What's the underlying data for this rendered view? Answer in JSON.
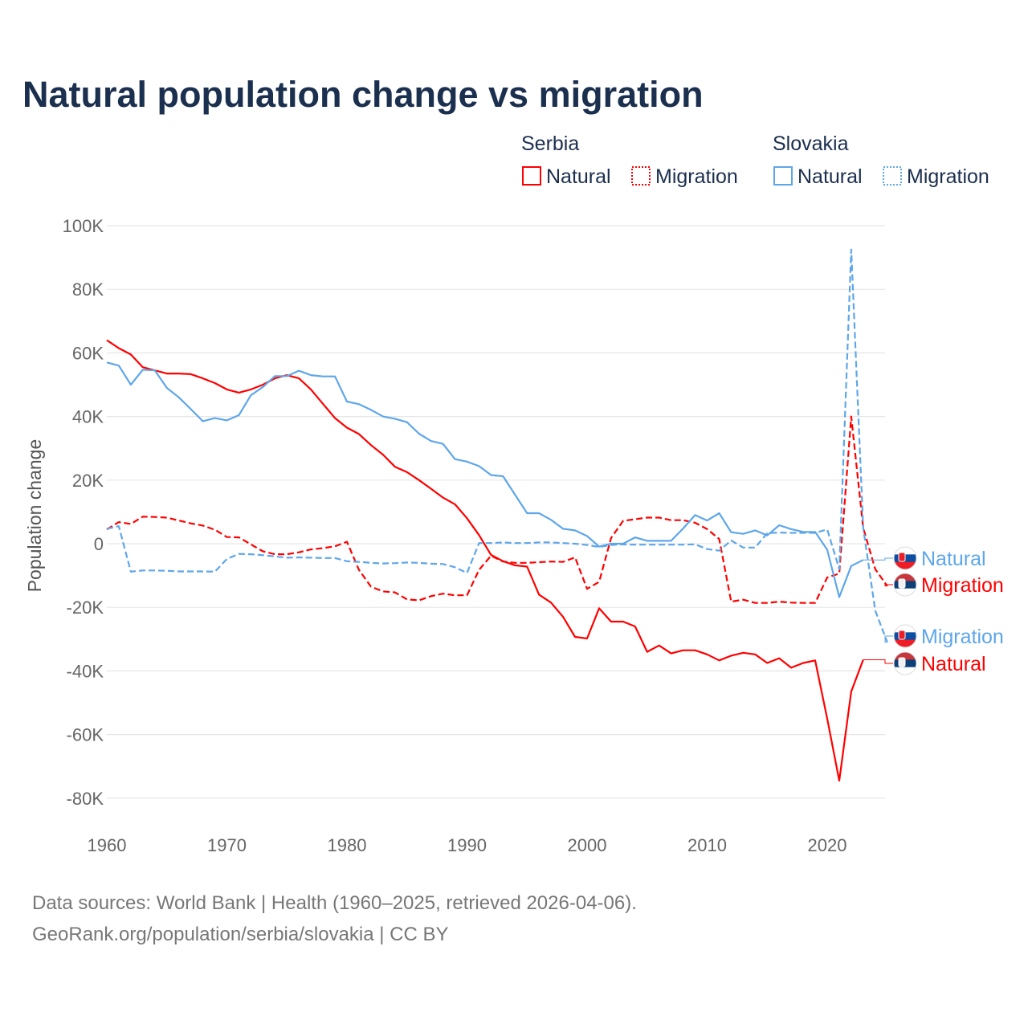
{
  "chart_data": {
    "type": "line",
    "title": "Natural population change vs migration",
    "xlabel": "",
    "ylabel": "Population change",
    "xlim": [
      1960,
      2025
    ],
    "ylim": [
      -80,
      100
    ],
    "y_unit": "thousands",
    "grid": true,
    "x_ticks": [
      1960,
      1970,
      1980,
      1990,
      2000,
      2010,
      2020
    ],
    "x_tick_labels": [
      "1960",
      "1970",
      "1980",
      "1990",
      "2000",
      "2010",
      "2020"
    ],
    "y_ticks": [
      100,
      80,
      60,
      40,
      20,
      0,
      -20,
      -40,
      -60,
      -80
    ],
    "y_tick_labels": [
      "100K",
      "80K",
      "60K",
      "40K",
      "20K",
      "0",
      "-20K",
      "-40K",
      "-60K",
      "-80K"
    ],
    "legend": {
      "placement": "top-right",
      "groups": [
        {
          "country": "Serbia",
          "items": [
            "Natural",
            "Migration"
          ]
        },
        {
          "country": "Slovakia",
          "items": [
            "Natural",
            "Migration"
          ]
        }
      ]
    },
    "series": [
      {
        "name": "Serbia Natural",
        "country": "Serbia",
        "kind": "Natural",
        "color": "#ff0000",
        "dashed": false,
        "end_label": "Natural",
        "start_year": 1960,
        "values": [
          64,
          61.5,
          59.5,
          55.5,
          54.5,
          53.5,
          53.5,
          53.3,
          52,
          50.5,
          48.5,
          47.5,
          48.5,
          50,
          52,
          53,
          52,
          48.5,
          44,
          39.5,
          36.5,
          34.5,
          31,
          28,
          24.2,
          22.5,
          20,
          17.3,
          14.5,
          12.4,
          8,
          2.7,
          -3.5,
          -5.5,
          -6.8,
          -7.2,
          -16,
          -18.5,
          -23,
          -29.3,
          -29.8,
          -20.3,
          -24.5,
          -24.5,
          -26,
          -34,
          -32,
          -34.5,
          -33.5,
          -33.5,
          -34.8,
          -36.7,
          -35.2,
          -34.3,
          -34.8,
          -37.5,
          -36,
          -39,
          -37.5,
          -36.7,
          -55,
          -74.5,
          -46.5,
          -36.5
        ]
      },
      {
        "name": "Serbia Migration",
        "country": "Serbia",
        "kind": "Migration",
        "color": "#ff0000",
        "dashed": true,
        "end_label": "Migration",
        "start_year": 1960,
        "values": [
          4.5,
          6.8,
          6.2,
          8.5,
          8.4,
          8.2,
          7.3,
          6.4,
          5.7,
          4.4,
          2.1,
          2,
          -0.2,
          -2.4,
          -3.3,
          -3.3,
          -2.7,
          -1.8,
          -1.4,
          -0.8,
          0.6,
          -8.2,
          -13.5,
          -15,
          -15.3,
          -17.5,
          -17.8,
          -16.5,
          -15.7,
          -16.2,
          -16.2,
          -8.2,
          -3.8,
          -5.6,
          -6,
          -6,
          -5.8,
          -5.6,
          -5.7,
          -4.3,
          -14.2,
          -12,
          1.8,
          7.2,
          7.7,
          8.2,
          8.2,
          7.4,
          7.4,
          6.6,
          4.6,
          1.5,
          -18.2,
          -17.6,
          -18.6,
          -18.6,
          -18.2,
          -18.5,
          -18.6,
          -18.6,
          -10.6,
          -9.4,
          40,
          5,
          -8,
          -13.3
        ]
      },
      {
        "name": "Slovakia Natural",
        "country": "Slovakia",
        "kind": "Natural",
        "color": "#5ea6ea",
        "dashed": false,
        "end_label": "Natural",
        "start_year": 1960,
        "values": [
          57,
          56,
          50,
          54.7,
          54.5,
          49,
          46,
          42.3,
          38.5,
          39.5,
          38.8,
          40.4,
          46.7,
          49.3,
          52.7,
          52.7,
          54.4,
          53,
          52.6,
          52.6,
          44.7,
          43.9,
          42.1,
          40,
          39.3,
          38.2,
          34.6,
          32.3,
          31.4,
          26.6,
          25.8,
          24.4,
          21.6,
          21.2,
          15.4,
          9.6,
          9.6,
          7.5,
          4.7,
          4.2,
          2.4,
          -0.9,
          0,
          0,
          2,
          0.9,
          0.9,
          0.9,
          4.8,
          9,
          7.3,
          9.6,
          3.6,
          3.1,
          4.2,
          2.6,
          5.8,
          4.6,
          3.7,
          3.7,
          -1.9,
          -16.8,
          -7,
          -5.1
        ]
      },
      {
        "name": "Slovakia Migration",
        "country": "Slovakia",
        "kind": "Migration",
        "color": "#5ea6ea",
        "dashed": true,
        "end_label": "Migration",
        "start_year": 1960,
        "values": [
          4.7,
          5.5,
          -8.8,
          -8.4,
          -8.4,
          -8.5,
          -8.7,
          -8.7,
          -8.7,
          -8.8,
          -4.8,
          -3.2,
          -3.3,
          -3.6,
          -4,
          -4.4,
          -4.3,
          -4.4,
          -4.5,
          -4.5,
          -5.5,
          -5.7,
          -6,
          -6.2,
          -6.1,
          -5.9,
          -6,
          -6.3,
          -6.4,
          -7.4,
          -9.2,
          0.2,
          0.2,
          0.4,
          0.2,
          0.2,
          0.4,
          0.4,
          0.2,
          0,
          -0.4,
          -1,
          -0.4,
          -0.2,
          -0.3,
          -0.3,
          -0.3,
          -0.3,
          -0.3,
          -0.2,
          -1.7,
          -2.2,
          1,
          -1.2,
          -1.2,
          3.3,
          3.5,
          3.4,
          3.4,
          3.4,
          4.5,
          -8,
          92.5,
          5,
          -21,
          -31
        ]
      }
    ]
  },
  "footer": {
    "line1": "Data sources: World Bank | Health (1960–2025, retrieved 2026-04-06).",
    "line2": "GeoRank.org/population/serbia/slovakia | CC BY"
  }
}
